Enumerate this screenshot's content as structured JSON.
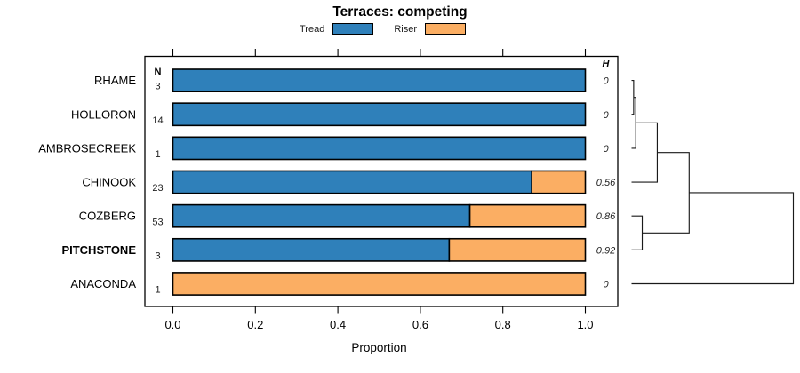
{
  "title": "Terraces: competing",
  "legend": [
    {
      "label": "Tread",
      "color": "#2f80ba"
    },
    {
      "label": "Riser",
      "color": "#fbae63"
    }
  ],
  "chart_data": {
    "type": "bar",
    "orientation": "horizontal",
    "stacked": true,
    "title": "Terraces: competing",
    "xlabel": "Proportion",
    "xlim": [
      0,
      1
    ],
    "xticks": [
      "0.0",
      "0.2",
      "0.4",
      "0.6",
      "0.8",
      "1.0"
    ],
    "grid": false,
    "legend_position": "top",
    "categories": [
      "RHAME",
      "HOLLORON",
      "AMBROSECREEK",
      "CHINOOK",
      "COZBERG",
      "PITCHSTONE",
      "ANACONDA"
    ],
    "bold_category": "PITCHSTONE",
    "series": [
      {
        "name": "Tread",
        "color": "#2f80ba",
        "values": [
          1.0,
          1.0,
          1.0,
          0.87,
          0.72,
          0.67,
          0.0
        ]
      },
      {
        "name": "Riser",
        "color": "#fbae63",
        "values": [
          0.0,
          0.0,
          0.0,
          0.13,
          0.28,
          0.33,
          1.0
        ]
      }
    ],
    "n_column": {
      "header": "N",
      "values": [
        "3",
        "14",
        "1",
        "23",
        "53",
        "3",
        "1"
      ]
    },
    "h_column": {
      "header": "H",
      "values": [
        "0",
        "0",
        "0",
        "0.56",
        "0.86",
        "0.92",
        "0"
      ]
    },
    "dendrogram": {
      "side": "right",
      "merges": [
        {
          "a": "RHAME",
          "b": "HOLLORON",
          "height": 0.013
        },
        {
          "a": "@0",
          "b": "AMBROSECREEK",
          "height": 0.026
        },
        {
          "a": "@1",
          "b": "CHINOOK",
          "height": 0.159
        },
        {
          "a": "COZBERG",
          "b": "PITCHSTONE",
          "height": 0.066
        },
        {
          "a": "@2",
          "b": "@3",
          "height": 0.356
        },
        {
          "a": "@4",
          "b": "ANACONDA",
          "height": 1.0
        }
      ]
    }
  }
}
